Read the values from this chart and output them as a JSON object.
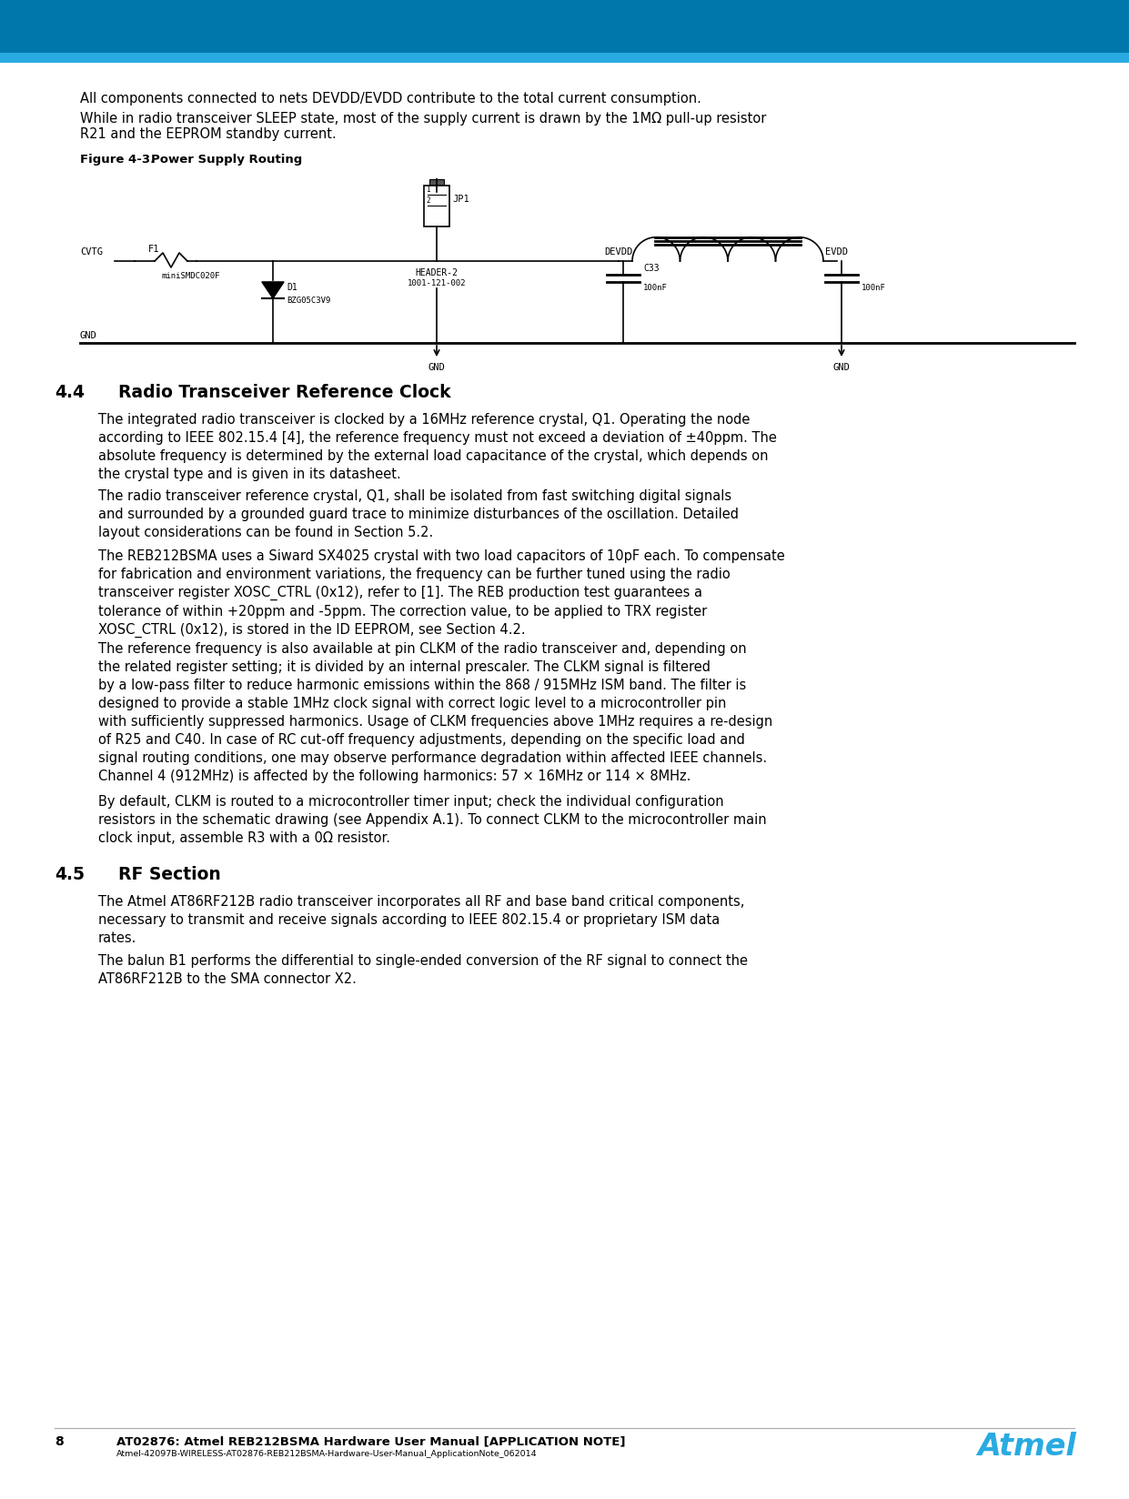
{
  "header_color_dark": "#0077AA",
  "header_color_light": "#29ABE2",
  "page_bg": "#FFFFFF",
  "footer_page_number": "8",
  "footer_title": "AT02876: Atmel REB212BSMA Hardware User Manual [APPLICATION NOTE]",
  "footer_subtitle": "Atmel-42097B-WIRELESS-AT02876-REB212BSMA-Hardware-User-Manual_ApplicationNote_062014",
  "atmel_logo_color": "#29ABE2",
  "link_color": "#1155CC",
  "section_44_num": "4.4",
  "section_44_name": "Radio Transceiver Reference Clock",
  "section_45_num": "4.5",
  "section_45_name": "RF Section",
  "figure_label": "Figure 4-3.",
  "figure_caption": "Power Supply Routing",
  "paragraph_intro1": "All components connected to nets DEVDD/EVDD contribute to the total current consumption.",
  "paragraph_intro2": "While in radio transceiver SLEEP state, most of the supply current is drawn by the 1MΩ pull-up resistor R21 and the EEPROM standby current.",
  "para_44_1": "The integrated radio transceiver is clocked by a 16MHz reference crystal, Q1. Operating the node according to IEEE 802.15.4 [4], the reference frequency must not exceed a deviation of ±40ppm. The absolute frequency is determined by the external load capacitance of the crystal, which depends on the crystal type and is given in its datasheet.",
  "para_44_2": "The radio transceiver reference crystal, Q1, shall be isolated from fast switching digital signals and surrounded by a grounded guard trace to minimize disturbances of the oscillation. Detailed layout considerations can be found in Section 5.2.",
  "para_44_3": "The REB212BSMA uses a Siward SX4025 crystal with two load capacitors of 10pF each. To compensate for fabrication and environment variations, the frequency can be further tuned using the radio transceiver register XOSC_CTRL (0x12), refer to [1]. The REB production test guarantees a tolerance of within +20ppm and -5ppm. The correction value, to be applied to TRX register XOSC_CTRL (0x12), is stored in the ID EEPROM, see Section 4.2.",
  "para_44_4": "The reference frequency is also available at pin CLKM of the radio transceiver and, depending on the related register setting; it is divided by an internal prescaler. The CLKM signal is filtered by a low-pass filter to reduce harmonic emissions within the 868 / 915MHz ISM band. The filter is designed to provide a stable 1MHz clock signal with correct logic level to a microcontroller pin with sufficiently suppressed harmonics. Usage of CLKM frequencies above 1MHz requires a re-design of R25 and C40. In case of RC cut-off frequency adjustments, depending on the specific load and signal routing conditions, one may observe performance degradation within affected IEEE channels.",
  "para_44_5": "Channel 4 (912MHz) is affected by the following harmonics: 57 × 16MHz or 114 × 8MHz.",
  "para_44_6": "By default, CLKM is routed to a microcontroller timer input; check the individual configuration resistors in the schematic drawing (see Appendix A.1). To connect CLKM to the microcontroller main clock input, assemble R3 with a 0Ω resistor.",
  "para_45_1": "The Atmel AT86RF212B radio transceiver incorporates all RF and base band critical components, necessary to transmit and receive signals according to IEEE 802.15.4 or proprietary ISM data rates.",
  "para_45_2": "The balun B1 performs the differential to single-ended conversion of the RF signal to connect the AT86RF212B to the SMA connector X2."
}
